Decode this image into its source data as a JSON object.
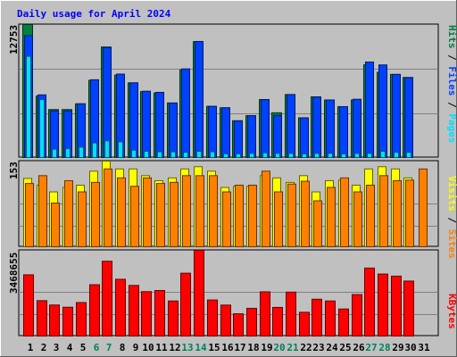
{
  "chart_data": [
    {
      "type": "bar",
      "title": "Daily usage for April 2024",
      "panel": "pages-files-hits",
      "categories": [
        "1",
        "2",
        "3",
        "4",
        "5",
        "6",
        "7",
        "8",
        "9",
        "10",
        "11",
        "12",
        "13",
        "14",
        "15",
        "16",
        "17",
        "18",
        "19",
        "20",
        "21",
        "22",
        "23",
        "24",
        "25",
        "26",
        "27",
        "28",
        "29",
        "30",
        "31"
      ],
      "y_tick_label": "12753",
      "ylim": [
        0,
        12753
      ],
      "legend": [
        {
          "text": "Pages",
          "color": "#00e0ff"
        },
        {
          "text": "Files",
          "color": "#0040ff"
        },
        {
          "text": "Hits",
          "color": "#008040"
        }
      ],
      "series": [
        {
          "name": "Hits",
          "color": "#008040",
          "values": [
            12753,
            5900,
            4600,
            4600,
            5150,
            7400,
            10600,
            7900,
            7160,
            6320,
            6190,
            5230,
            8390,
            11110,
            4910,
            4770,
            3530,
            4010,
            5560,
            4290,
            6040,
            3810,
            5820,
            5520,
            4880,
            5520,
            8890,
            8170,
            7970,
            7680,
            0
          ]
        },
        {
          "name": "Files",
          "color": "#0040ff",
          "values": [
            11690,
            6010,
            4480,
            4480,
            5150,
            7460,
            10550,
            8000,
            7160,
            6360,
            6250,
            5230,
            8500,
            11130,
            4910,
            4770,
            3500,
            4010,
            5560,
            4040,
            6040,
            3800,
            5800,
            5520,
            4880,
            5590,
            9160,
            8880,
            7970,
            7650,
            0
          ]
        },
        {
          "name": "Pages",
          "color": "#00e0ff",
          "values": [
            9700,
            5550,
            800,
            850,
            1000,
            1400,
            1600,
            1500,
            700,
            600,
            550,
            550,
            500,
            600,
            550,
            350,
            350,
            400,
            450,
            400,
            400,
            350,
            400,
            400,
            350,
            400,
            400,
            600,
            500,
            500,
            0
          ]
        }
      ]
    },
    {
      "type": "bar",
      "panel": "visits-sites",
      "categories": [
        "1",
        "2",
        "3",
        "4",
        "5",
        "6",
        "7",
        "8",
        "9",
        "10",
        "11",
        "12",
        "13",
        "14",
        "15",
        "16",
        "17",
        "18",
        "19",
        "20",
        "21",
        "22",
        "23",
        "24",
        "25",
        "26",
        "27",
        "28",
        "29",
        "30",
        "31"
      ],
      "y_tick_label": "153",
      "ylim": [
        0,
        153
      ],
      "legend": [
        {
          "text": "Sites",
          "color": "#ff8000"
        },
        {
          "text": "Visits",
          "color": "#ffff00"
        }
      ],
      "series": [
        {
          "name": "Visits",
          "color": "#ffff00",
          "values": [
            122,
            110,
            98,
            106,
            110,
            135,
            153,
            139,
            139,
            127,
            118,
            123,
            139,
            143,
            135,
            106,
            108,
            108,
            127,
            123,
            115,
            127,
            98,
            118,
            119,
            110,
            139,
            143,
            139,
            123,
            0
          ]
        },
        {
          "name": "Sites",
          "color": "#ff8000",
          "values": [
            113,
            127,
            78,
            118,
            98,
            115,
            139,
            123,
            108,
            123,
            113,
            115,
            127,
            127,
            127,
            98,
            110,
            110,
            135,
            98,
            112,
            117,
            82,
            106,
            123,
            98,
            110,
            127,
            118,
            119,
            139
          ]
        }
      ]
    },
    {
      "type": "bar",
      "panel": "kbytes",
      "categories": [
        "1",
        "2",
        "3",
        "4",
        "5",
        "6",
        "7",
        "8",
        "9",
        "10",
        "11",
        "12",
        "13",
        "14",
        "15",
        "16",
        "17",
        "18",
        "19",
        "20",
        "21",
        "22",
        "23",
        "24",
        "25",
        "26",
        "27",
        "28",
        "29",
        "30",
        "31"
      ],
      "y_tick_label": "3468655",
      "ylim": [
        0,
        3468655
      ],
      "legend": [
        {
          "text": "KBytes",
          "color": "#ff0000"
        }
      ],
      "series": [
        {
          "name": "KBytes",
          "color": "#ff0000",
          "values": [
            2478000,
            1432000,
            1255000,
            1166000,
            1355000,
            2076000,
            3028000,
            2297000,
            2048000,
            1797000,
            1843000,
            1419000,
            2543000,
            3468655,
            1459000,
            1252000,
            901000,
            1122000,
            1790000,
            1159000,
            1778000,
            961000,
            1490000,
            1419000,
            1094000,
            1678000,
            2752000,
            2509000,
            2425000,
            2224000,
            0
          ]
        }
      ]
    }
  ],
  "x_axis_colors": {
    "weekday": "#000000",
    "weekend": "#00805c"
  },
  "weekend_days": [
    "6",
    "7",
    "13",
    "14",
    "20",
    "21",
    "27",
    "28"
  ]
}
